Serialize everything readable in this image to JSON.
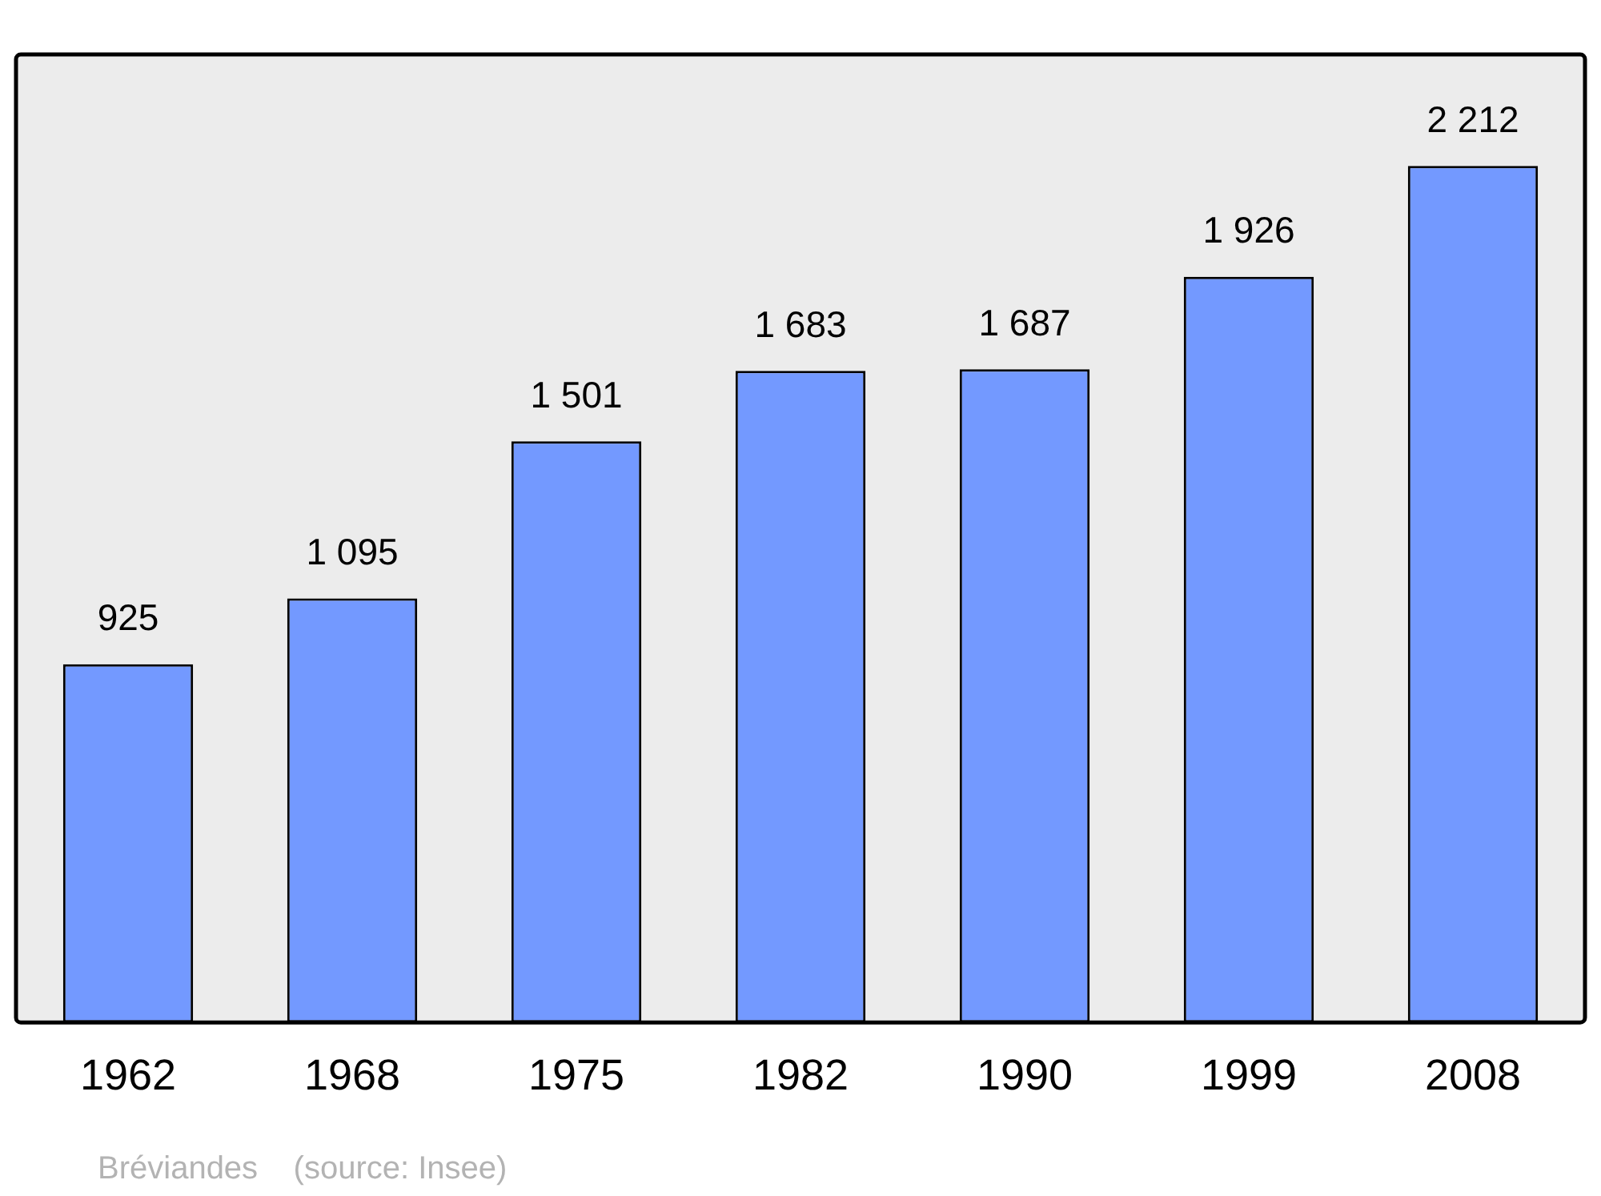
{
  "chart_data": {
    "type": "bar",
    "categories": [
      "1962",
      "1968",
      "1975",
      "1982",
      "1990",
      "1999",
      "2008"
    ],
    "values": [
      925,
      1095,
      1501,
      1683,
      1687,
      1926,
      2212
    ],
    "value_labels": [
      "925",
      "1 095",
      "1 501",
      "1 683",
      "1 687",
      "1 926",
      "2 212"
    ],
    "color": "#7399ff",
    "grid": false,
    "legend": false,
    "annotations": [
      "Bréviandes    (source: Insee)"
    ]
  }
}
